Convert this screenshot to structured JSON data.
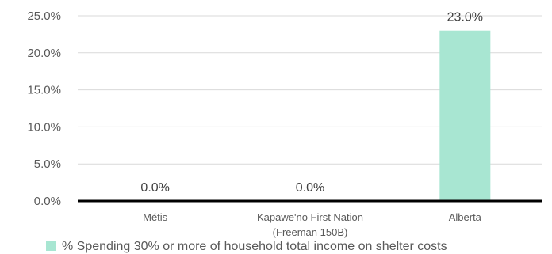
{
  "chart_data": {
    "type": "bar",
    "categories": [
      "Métis",
      "Kapawe'no First Nation (Freeman 150B)",
      "Alberta"
    ],
    "category_lines": [
      [
        "Métis"
      ],
      [
        "Kapawe'no First Nation",
        "(Freeman 150B)"
      ],
      [
        "Alberta"
      ]
    ],
    "series": [
      {
        "name": "% Spending 30% or more of household total income on shelter costs",
        "values": [
          0.0,
          0.0,
          23.0
        ],
        "data_labels": [
          "0.0%",
          "0.0%",
          "23.0%"
        ],
        "color": "#a8e6d2"
      }
    ],
    "ylim": [
      0,
      25
    ],
    "yticks": [
      0,
      5,
      10,
      15,
      20,
      25
    ],
    "ytick_labels": [
      "0.0%",
      "5.0%",
      "10.0%",
      "15.0%",
      "20.0%",
      "25.0%"
    ],
    "grid": true,
    "legend_position": "bottom",
    "gridline_color": "#d9d9d9",
    "axis_color": "#000000"
  }
}
